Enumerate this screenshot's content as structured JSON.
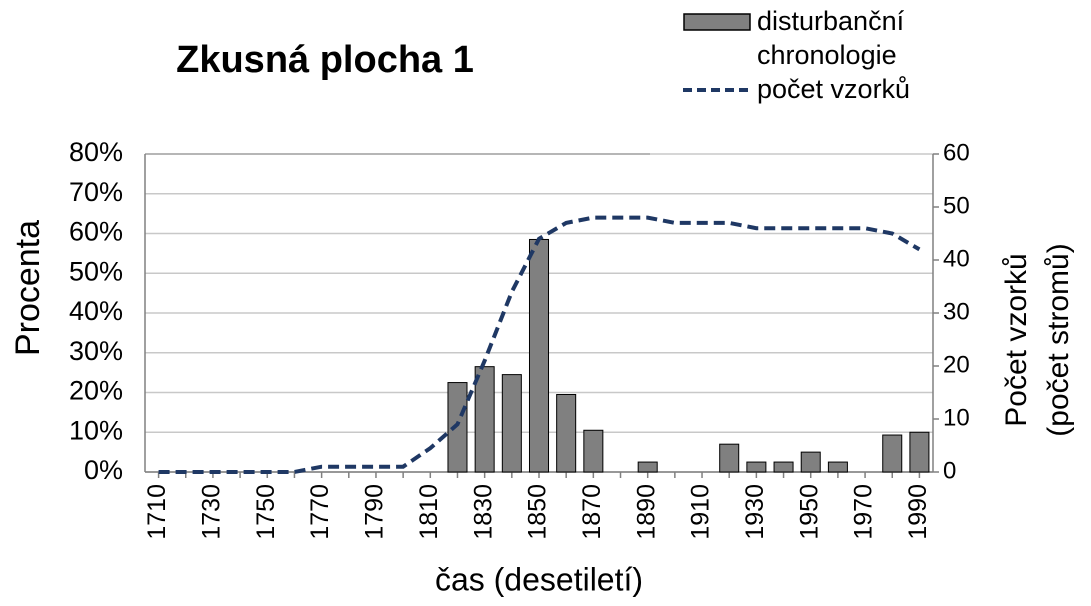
{
  "chart_data": {
    "type": "bar",
    "title": "Zkusná plocha 1",
    "y_label": "Procenta",
    "y2_label": [
      "Počet vzorků",
      "(počet stromů)"
    ],
    "x_label": "čas (desetiletí)",
    "categories": [
      "1710",
      null,
      "1730",
      null,
      "1750",
      null,
      "1770",
      null,
      "1790",
      null,
      "1810",
      null,
      "1830",
      null,
      "1850",
      null,
      "1870",
      null,
      "1890",
      null,
      "1910",
      null,
      "1930",
      null,
      "1950",
      null,
      "1970",
      null,
      "1990"
    ],
    "series": [
      {
        "name": "disturbanční chronologie",
        "type": "bar",
        "color": "#808080",
        "values": [
          0,
          0,
          0,
          0,
          0,
          0,
          0,
          0,
          0,
          0,
          0,
          22.5,
          26.5,
          24.5,
          58.5,
          19.5,
          10.5,
          0,
          2.5,
          0,
          0,
          7,
          2.5,
          2.5,
          5,
          2.5,
          0,
          9.3,
          10
        ]
      },
      {
        "name": "počet vzorků",
        "type": "line",
        "axis": "y2",
        "color": "#1f3864",
        "values": [
          0,
          0,
          0,
          0,
          0,
          0,
          1,
          1,
          1,
          1,
          4.5,
          9,
          21,
          34,
          44,
          47,
          48,
          48,
          48,
          47,
          47,
          47,
          46,
          46,
          46,
          46,
          46,
          45,
          42
        ]
      }
    ],
    "ylim": [
      0,
      80
    ],
    "yticks": [
      {
        "value": 0,
        "label": "0%"
      },
      {
        "value": 10,
        "label": "10%"
      },
      {
        "value": 20,
        "label": "20%"
      },
      {
        "value": 30,
        "label": "30%"
      },
      {
        "value": 40,
        "label": "40%"
      },
      {
        "value": 50,
        "label": "50%"
      },
      {
        "value": 60,
        "label": "60%"
      },
      {
        "value": 70,
        "label": "70%"
      },
      {
        "value": 80,
        "label": "80%"
      }
    ],
    "y2lim": [
      0,
      60
    ],
    "y2ticks": [
      0,
      10,
      20,
      30,
      40,
      50,
      60
    ],
    "grid": true
  }
}
